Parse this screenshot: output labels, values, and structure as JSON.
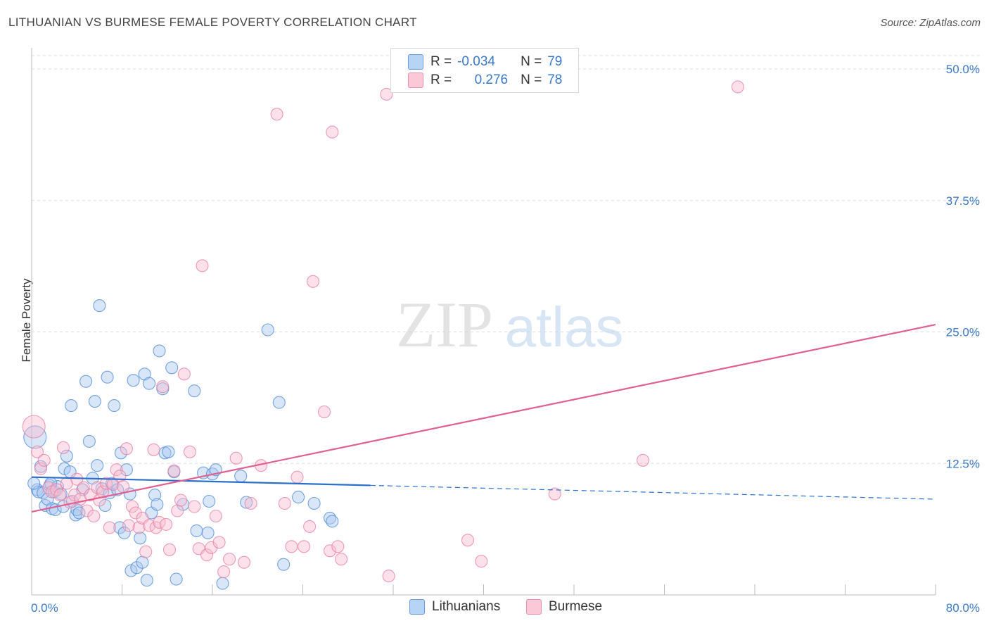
{
  "title": "LITHUANIAN VS BURMESE FEMALE POVERTY CORRELATION CHART",
  "source": "Source: ZipAtlas.com",
  "watermark": {
    "zip": "ZIP",
    "atlas": "atlas"
  },
  "legend_top": [
    {
      "r_label": "R =",
      "r_value": "-0.034",
      "n_label": "N =",
      "n_value": "79"
    },
    {
      "r_label": "R =",
      "r_value": "0.276",
      "n_label": "N =",
      "n_value": "78"
    }
  ],
  "legend_bottom": [
    "Lithuanians",
    "Burmese"
  ],
  "colors": {
    "lithuanians_fill": "#a8c8f0",
    "lithuanians_stroke": "#4a88d8",
    "lithuanians_line": "#2a6fcc",
    "burmese_fill": "#f8bcd0",
    "burmese_stroke": "#e87ca0",
    "burmese_line": "#e06090",
    "tick_label": "#3a78c8",
    "grid": "#dddddd"
  },
  "chart_data": {
    "type": "scatter",
    "title": "LITHUANIAN VS BURMESE FEMALE POVERTY CORRELATION CHART",
    "xlabel": "",
    "ylabel": "Female Poverty",
    "xlim": [
      0,
      80
    ],
    "ylim": [
      0,
      50
    ],
    "x_tick_labels": [
      "0.0%",
      "80.0%"
    ],
    "y_ticks": [
      12.5,
      25.0,
      37.5,
      50.0
    ],
    "y_tick_labels": [
      "12.5%",
      "25.0%",
      "37.5%",
      "50.0%"
    ],
    "grid": true,
    "legend_position": "top-center",
    "series": [
      {
        "name": "Lithuanians",
        "r": -0.034,
        "n": 79,
        "trend": {
          "x0": 0,
          "y0": 11.2,
          "x1": 80,
          "y1": 9.1,
          "solid_until": 30
        },
        "points": [
          [
            0.3,
            15.0
          ],
          [
            0.5,
            10.0
          ],
          [
            0.6,
            9.8
          ],
          [
            0.8,
            12.2
          ],
          [
            1.0,
            9.7
          ],
          [
            1.2,
            8.5
          ],
          [
            1.4,
            9.1
          ],
          [
            1.6,
            10.4
          ],
          [
            1.8,
            8.2
          ],
          [
            2.0,
            9.8
          ],
          [
            2.1,
            8.1
          ],
          [
            2.3,
            10.3
          ],
          [
            2.6,
            9.6
          ],
          [
            2.8,
            8.4
          ],
          [
            2.9,
            12.0
          ],
          [
            3.1,
            13.2
          ],
          [
            3.4,
            11.7
          ],
          [
            3.5,
            18.0
          ],
          [
            3.6,
            8.9
          ],
          [
            3.9,
            7.6
          ],
          [
            4.0,
            8.1
          ],
          [
            4.2,
            7.8
          ],
          [
            4.5,
            10.0
          ],
          [
            4.8,
            20.3
          ],
          [
            5.1,
            14.6
          ],
          [
            5.4,
            11.1
          ],
          [
            5.6,
            18.4
          ],
          [
            5.8,
            12.3
          ],
          [
            6.0,
            27.5
          ],
          [
            6.2,
            10.1
          ],
          [
            6.5,
            8.5
          ],
          [
            6.7,
            20.7
          ],
          [
            6.9,
            9.7
          ],
          [
            7.1,
            10.6
          ],
          [
            7.3,
            18.0
          ],
          [
            7.6,
            10.0
          ],
          [
            7.8,
            6.4
          ],
          [
            7.9,
            13.5
          ],
          [
            8.2,
            5.9
          ],
          [
            8.4,
            11.9
          ],
          [
            8.7,
            9.6
          ],
          [
            8.8,
            2.3
          ],
          [
            9.0,
            20.4
          ],
          [
            9.3,
            2.6
          ],
          [
            9.6,
            5.4
          ],
          [
            9.8,
            3.1
          ],
          [
            10.0,
            21.0
          ],
          [
            10.2,
            1.4
          ],
          [
            10.4,
            20.1
          ],
          [
            10.6,
            7.8
          ],
          [
            10.9,
            9.5
          ],
          [
            11.1,
            8.6
          ],
          [
            11.3,
            23.2
          ],
          [
            11.6,
            19.6
          ],
          [
            11.8,
            13.5
          ],
          [
            12.1,
            13.6
          ],
          [
            12.4,
            21.6
          ],
          [
            12.6,
            11.7
          ],
          [
            12.8,
            1.5
          ],
          [
            13.4,
            8.6
          ],
          [
            14.4,
            19.4
          ],
          [
            14.6,
            6.1
          ],
          [
            15.2,
            11.6
          ],
          [
            15.6,
            5.9
          ],
          [
            15.7,
            8.9
          ],
          [
            16.0,
            11.5
          ],
          [
            16.3,
            11.9
          ],
          [
            16.9,
            1.1
          ],
          [
            18.5,
            11.3
          ],
          [
            19.0,
            8.8
          ],
          [
            20.9,
            25.2
          ],
          [
            21.9,
            18.3
          ],
          [
            22.3,
            2.9
          ],
          [
            23.6,
            9.3
          ],
          [
            25.0,
            8.7
          ],
          [
            26.4,
            7.3
          ],
          [
            26.6,
            7.0
          ],
          [
            0.2,
            10.6
          ],
          [
            1.7,
            10.6
          ]
        ]
      },
      {
        "name": "Burmese",
        "r": 0.276,
        "n": 78,
        "trend": {
          "x0": 0,
          "y0": 7.9,
          "x1": 80,
          "y1": 25.7
        },
        "points": [
          [
            0.2,
            16.0
          ],
          [
            0.5,
            13.6
          ],
          [
            0.8,
            12.0
          ],
          [
            1.1,
            12.8
          ],
          [
            1.5,
            10.2
          ],
          [
            1.8,
            9.8
          ],
          [
            2.2,
            10.0
          ],
          [
            2.5,
            9.5
          ],
          [
            2.8,
            14.0
          ],
          [
            3.1,
            10.6
          ],
          [
            3.4,
            8.8
          ],
          [
            3.8,
            9.5
          ],
          [
            4.0,
            11.0
          ],
          [
            4.3,
            9.1
          ],
          [
            4.6,
            10.2
          ],
          [
            4.9,
            8.0
          ],
          [
            5.2,
            9.5
          ],
          [
            5.5,
            7.5
          ],
          [
            5.8,
            10.2
          ],
          [
            6.0,
            9.0
          ],
          [
            6.3,
            9.8
          ],
          [
            6.6,
            10.6
          ],
          [
            6.9,
            6.4
          ],
          [
            7.2,
            10.5
          ],
          [
            7.5,
            11.9
          ],
          [
            7.8,
            11.3
          ],
          [
            8.1,
            10.3
          ],
          [
            8.4,
            13.9
          ],
          [
            8.6,
            6.6
          ],
          [
            8.9,
            8.4
          ],
          [
            9.2,
            7.8
          ],
          [
            9.5,
            6.4
          ],
          [
            9.8,
            7.3
          ],
          [
            10.1,
            4.1
          ],
          [
            10.4,
            6.6
          ],
          [
            10.8,
            13.8
          ],
          [
            11.0,
            6.4
          ],
          [
            11.3,
            6.9
          ],
          [
            11.6,
            19.8
          ],
          [
            11.9,
            6.7
          ],
          [
            12.2,
            4.3
          ],
          [
            12.6,
            11.8
          ],
          [
            12.9,
            8.0
          ],
          [
            13.2,
            9.0
          ],
          [
            13.5,
            21.0
          ],
          [
            14.0,
            13.6
          ],
          [
            14.4,
            8.4
          ],
          [
            14.8,
            4.4
          ],
          [
            15.1,
            31.3
          ],
          [
            15.5,
            3.8
          ],
          [
            15.9,
            4.5
          ],
          [
            16.3,
            7.5
          ],
          [
            16.6,
            5.0
          ],
          [
            17.0,
            2.2
          ],
          [
            17.5,
            3.4
          ],
          [
            18.1,
            13.0
          ],
          [
            18.8,
            3.1
          ],
          [
            19.4,
            8.7
          ],
          [
            20.3,
            12.3
          ],
          [
            21.7,
            45.7
          ],
          [
            22.4,
            8.7
          ],
          [
            23.0,
            4.6
          ],
          [
            23.5,
            11.2
          ],
          [
            24.1,
            4.6
          ],
          [
            24.6,
            6.5
          ],
          [
            24.9,
            29.8
          ],
          [
            25.9,
            17.4
          ],
          [
            26.4,
            4.2
          ],
          [
            26.6,
            44.0
          ],
          [
            27.1,
            4.6
          ],
          [
            27.4,
            3.4
          ],
          [
            31.4,
            47.6
          ],
          [
            31.6,
            1.8
          ],
          [
            38.6,
            5.2
          ],
          [
            39.8,
            3.2
          ],
          [
            46.3,
            9.6
          ],
          [
            54.1,
            12.8
          ],
          [
            62.5,
            48.3
          ]
        ]
      }
    ]
  }
}
